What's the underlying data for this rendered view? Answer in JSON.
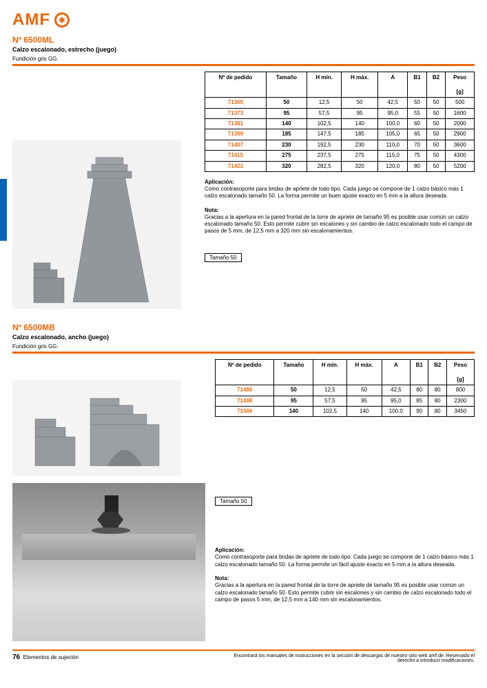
{
  "brand": "AMF",
  "sec1": {
    "code": "Nº 6500ML",
    "title": "Calzo escalonado, estrecho (juego)",
    "material": "Fundición gris GG.",
    "table": {
      "cols": [
        "Nº de pedido",
        "Tamaño",
        "H mín.",
        "H máx.",
        "A",
        "B1",
        "B2",
        "Peso [g]"
      ],
      "rows": [
        [
          "71365",
          "50",
          "12,5",
          "50",
          "42,5",
          "50",
          "50",
          "500"
        ],
        [
          "71373",
          "95",
          "57,5",
          "95",
          "95,0",
          "55",
          "50",
          "1600"
        ],
        [
          "71381",
          "140",
          "102,5",
          "140",
          "100,0",
          "60",
          "50",
          "2000"
        ],
        [
          "71399",
          "185",
          "147,5",
          "185",
          "105,0",
          "65",
          "50",
          "2900"
        ],
        [
          "71407",
          "230",
          "192,5",
          "230",
          "110,0",
          "70",
          "50",
          "3600"
        ],
        [
          "71415",
          "275",
          "237,5",
          "275",
          "115,0",
          "75",
          "50",
          "4300"
        ],
        [
          "71423",
          "320",
          "282,5",
          "320",
          "120,0",
          "80",
          "50",
          "5200"
        ]
      ]
    },
    "desc_h": "Aplicación:",
    "desc": "Como contrasoporte para bridas de apriete de todo tipo. Cada juego se compone de 1 calzo básico más 1 calzo escalonado tamaño 50. La forma permite un buen ajuste exacto en 5 mm a la altura deseada.",
    "note_h": "Nota:",
    "note": "Gracias a la apertura en la pared frontal de la torre de apriete de tamaño 95 es posible usar común un calzo escalonado tamaño 50. Esto permite cubrir sin escalones y sin cambio de calzo escalonado todo el campo de pasos de 5 mm, de 12,5 mm a 320 mm sin escalonamientos.",
    "dim_label": "Tamaño 50"
  },
  "sec2": {
    "code": "Nº 6500MB",
    "title": "Calzo escalonado, ancho (juego)",
    "material": "Fundición gris GG.",
    "table": {
      "cols": [
        "Nº de pedido",
        "Tamaño",
        "H mín.",
        "H máx.",
        "A",
        "B1",
        "B2",
        "Peso [g]"
      ],
      "rows": [
        [
          "71480",
          "50",
          "12,5",
          "50",
          "42,5",
          "80",
          "80",
          "800"
        ],
        [
          "71498",
          "95",
          "57,5",
          "95",
          "95,0",
          "85",
          "80",
          "2300"
        ],
        [
          "71506",
          "140",
          "102,5",
          "140",
          "100,0",
          "90",
          "80",
          "3450"
        ]
      ]
    },
    "dim_label": "Tamaño 50",
    "desc_h": "Aplicación:",
    "desc": "Como contrasoporte para bridas de apriete de todo tipo. Cada juego se compone de 1 calzo básico más 1 calzo escalonado tamaño 50. La forma permite un fácil ajuste exacto en 5 mm a la altura deseada.",
    "note_h": "Nota:",
    "note": "Gracias a la apertura en la pared frontal de la torre de apriete de tamaño 95 es posible usar común un calzo escalonado tamaño 50. Esto permite cubrir sin escalones y sin cambio de calzo escalonado todo el campo de pasos 5 mm, de 12,5 mm a 140 mm sin escalonamientos."
  },
  "footer": {
    "page": "76",
    "text": "Elementos de sujeción",
    "right": "Encontrará los manuales de instrucciones en la sección de descargas de nuestro sitio web amf.de. Reservado el derecho a introducir modificaciones."
  },
  "colors": {
    "accent": "#ec6608",
    "tab": "#0066b3"
  }
}
